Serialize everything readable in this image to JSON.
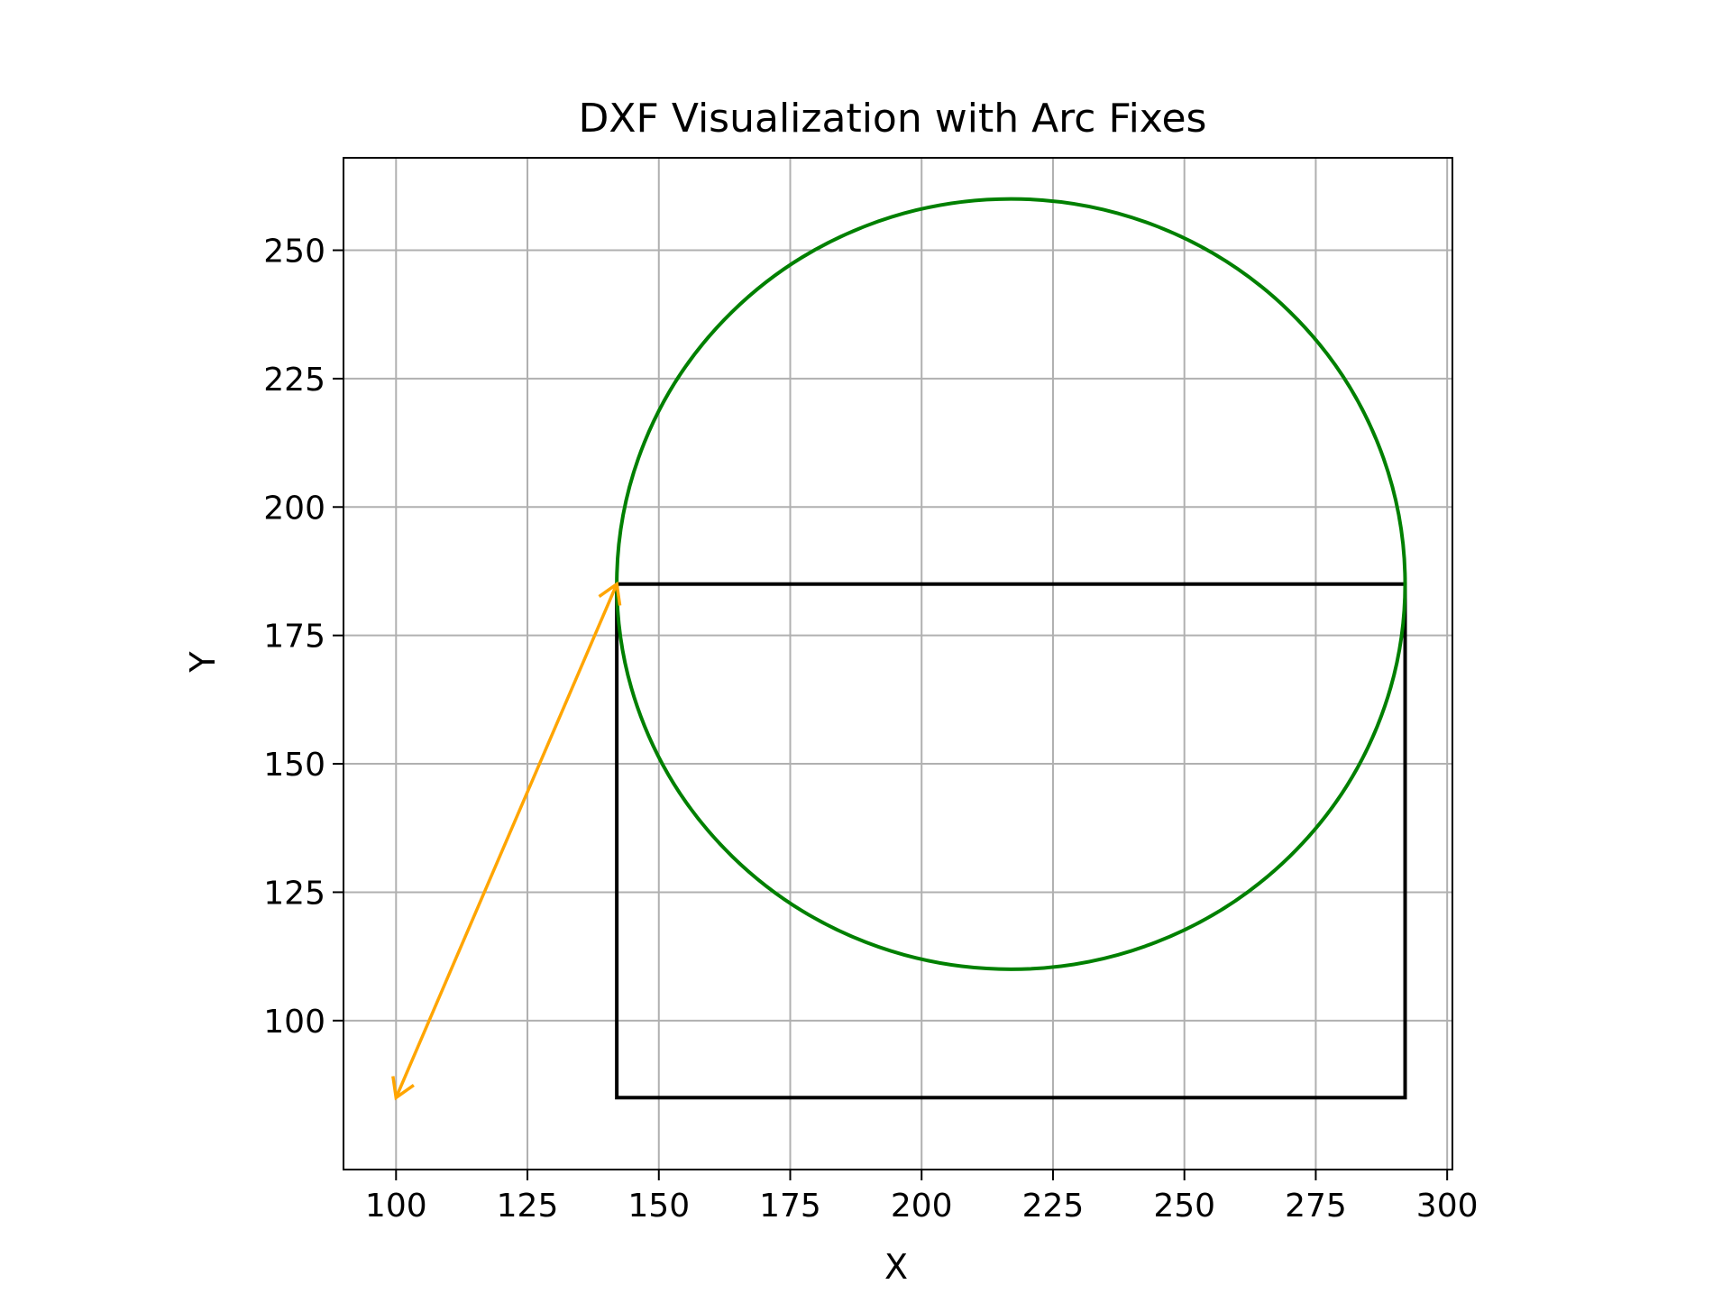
{
  "chart_data": {
    "type": "line",
    "title": "DXF Visualization with Arc Fixes",
    "xlabel": "X",
    "ylabel": "Y",
    "xlim": [
      90,
      301
    ],
    "ylim": [
      71,
      268
    ],
    "x_ticks": [
      100,
      125,
      150,
      175,
      200,
      225,
      250,
      275,
      300
    ],
    "y_ticks": [
      100,
      125,
      150,
      175,
      200,
      225,
      250
    ],
    "grid": true,
    "aspect": "equal",
    "shapes": [
      {
        "kind": "rectangle",
        "x_min": 142,
        "y_min": 85,
        "x_max": 292,
        "y_max": 185,
        "color": "#000000"
      },
      {
        "kind": "circle",
        "center": [
          217,
          185
        ],
        "radius": 75,
        "color": "#008000"
      },
      {
        "kind": "double-arrow",
        "from": [
          100,
          85
        ],
        "to": [
          142,
          185
        ],
        "color": "#ffa500"
      }
    ]
  }
}
